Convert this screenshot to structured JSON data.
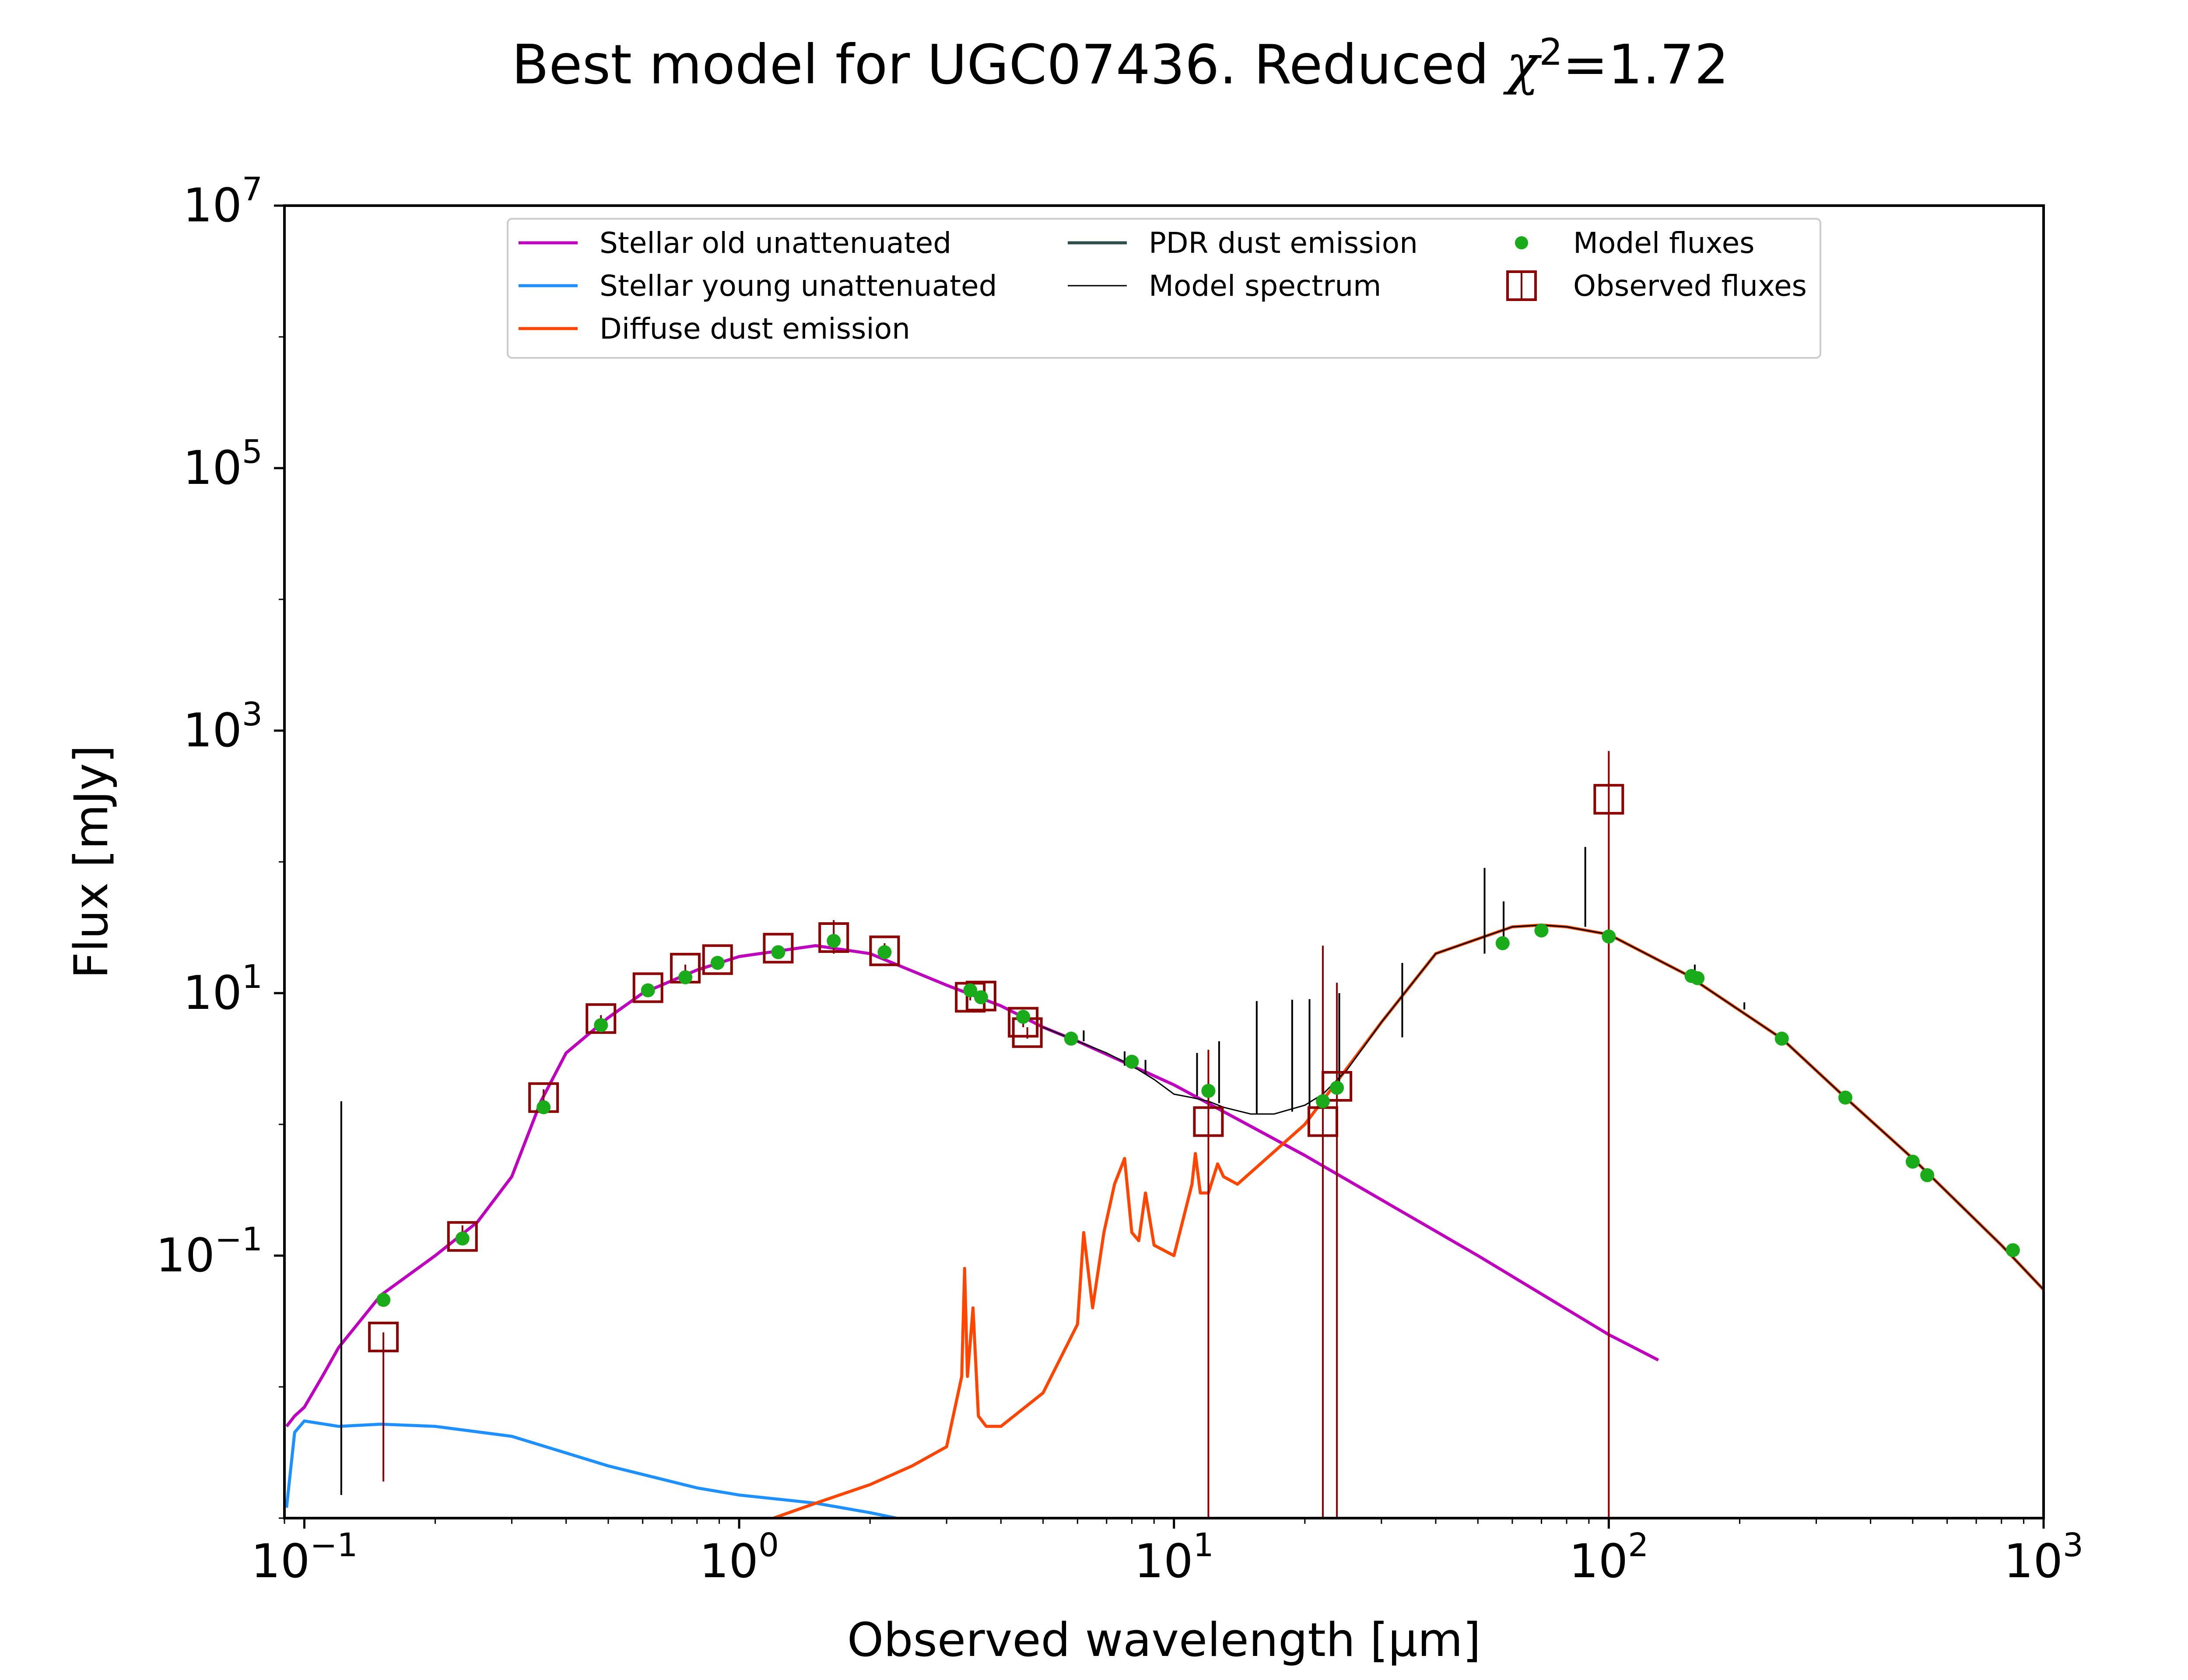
{
  "chart_data": {
    "type": "line",
    "title_prefix": "Best model for UGC07436. Reduced ",
    "title_symbol": "χ",
    "title_exponent": "2",
    "title_suffix": "=1.72",
    "xlabel": "Observed wavelength [μm]",
    "ylabel": "Flux [mJy]",
    "xscale": "log",
    "yscale": "log",
    "xlim": [
      0.09,
      1000
    ],
    "ylim": [
      0.001,
      10000000
    ],
    "x_ticks": [
      {
        "value": 0.1,
        "base": "10",
        "exp": "−1"
      },
      {
        "value": 1,
        "base": "10",
        "exp": "0"
      },
      {
        "value": 10,
        "base": "10",
        "exp": "1"
      },
      {
        "value": 100,
        "base": "10",
        "exp": "2"
      },
      {
        "value": 1000,
        "base": "10",
        "exp": "3"
      }
    ],
    "y_ticks": [
      {
        "value": 0.1,
        "base": "10",
        "exp": "−1"
      },
      {
        "value": 10,
        "base": "10",
        "exp": "1"
      },
      {
        "value": 1000,
        "base": "10",
        "exp": "3"
      },
      {
        "value": 100000,
        "base": "10",
        "exp": "5"
      },
      {
        "value": 10000000,
        "base": "10",
        "exp": "7"
      }
    ],
    "legend_position": "top-center",
    "legend": [
      {
        "label": "Stellar old unattenuated",
        "type": "line",
        "color": "#bf00bf"
      },
      {
        "label": "Stellar young unattenuated",
        "type": "line",
        "color": "#1e90ff"
      },
      {
        "label": "Diffuse dust emission",
        "type": "line",
        "color": "#ff4500"
      },
      {
        "label": "PDR dust emission",
        "type": "line",
        "color": "#2f4f4f"
      },
      {
        "label": "Model spectrum",
        "type": "thin-line",
        "color": "#000000"
      },
      {
        "label": "Model fluxes",
        "type": "dot",
        "color": "#1aab1a"
      },
      {
        "label": "Observed fluxes",
        "type": "square",
        "color": "#8b0000"
      }
    ],
    "series": [
      {
        "name": "Stellar old unattenuated",
        "color": "#bf00bf",
        "x": [
          0.091,
          0.095,
          0.1,
          0.11,
          0.12,
          0.15,
          0.2,
          0.25,
          0.3,
          0.35,
          0.4,
          0.5,
          0.6,
          0.8,
          1.0,
          1.5,
          2.0,
          3.0,
          4.0,
          5.0,
          6.0,
          8.0,
          10.0,
          20.0,
          50.0,
          100.0,
          130.0
        ],
        "y": [
          0.005,
          0.006,
          0.007,
          0.012,
          0.02,
          0.05,
          0.1,
          0.18,
          0.4,
          1.5,
          3.5,
          6.5,
          10,
          15,
          19,
          23,
          20,
          11.5,
          8,
          5.5,
          4.3,
          2.8,
          2.0,
          0.58,
          0.1,
          0.025,
          0.016
        ]
      },
      {
        "name": "Stellar young unattenuated",
        "color": "#1e90ff",
        "x": [
          0.091,
          0.095,
          0.1,
          0.12,
          0.15,
          0.2,
          0.3,
          0.5,
          0.8,
          1.0,
          1.5,
          2.0,
          2.3
        ],
        "y": [
          0.0012,
          0.0045,
          0.0055,
          0.005,
          0.0052,
          0.005,
          0.0042,
          0.0025,
          0.0017,
          0.0015,
          0.0013,
          0.0011,
          0.001
        ]
      },
      {
        "name": "Diffuse dust emission",
        "color": "#ff4500",
        "x": [
          1.2,
          1.5,
          2.0,
          2.5,
          3.0,
          3.25,
          3.3,
          3.35,
          3.45,
          3.55,
          3.7,
          4.0,
          5.0,
          6.0,
          6.2,
          6.5,
          6.9,
          7.3,
          7.7,
          8.0,
          8.3,
          8.6,
          9.0,
          10.0,
          11.0,
          11.2,
          11.5,
          12.0,
          12.6,
          13.0,
          14.0,
          20.0,
          30.0,
          40.0,
          60.0,
          70.0,
          80.0,
          100.0,
          150.0,
          250.0,
          350.0,
          500.0,
          800.0,
          1000.0
        ],
        "y": [
          0.001,
          0.0013,
          0.0018,
          0.0025,
          0.0035,
          0.012,
          0.08,
          0.012,
          0.04,
          0.006,
          0.005,
          0.005,
          0.009,
          0.03,
          0.15,
          0.04,
          0.15,
          0.35,
          0.55,
          0.15,
          0.13,
          0.3,
          0.12,
          0.1,
          0.35,
          0.6,
          0.3,
          0.3,
          0.5,
          0.4,
          0.35,
          1.0,
          6.0,
          20,
          32,
          33,
          32,
          28,
          14,
          4.5,
          1.6,
          0.55,
          0.12,
          0.055
        ]
      },
      {
        "name": "Model spectrum",
        "color": "#000000",
        "x": [
          5.0,
          6.0,
          7.0,
          8.0,
          9.0,
          10.0,
          11.0,
          12.0,
          13.0,
          15.0,
          17.0,
          20.0,
          22.0,
          25.0,
          30.0,
          40.0,
          60.0,
          70.0,
          80.0,
          100.0,
          150.0,
          250.0,
          350.0,
          500.0,
          800.0,
          1000.0
        ],
        "y": [
          5.5,
          4.3,
          3.5,
          2.8,
          2.2,
          1.7,
          1.6,
          1.5,
          1.35,
          1.2,
          1.2,
          1.4,
          1.7,
          2.6,
          6.0,
          20,
          32,
          33,
          32,
          28,
          14,
          4.5,
          1.6,
          0.55,
          0.12,
          0.055
        ]
      }
    ],
    "emission_lines": {
      "color": "#000000",
      "x": [
        0.1216,
        6.2,
        7.7,
        8.6,
        11.3,
        12.7,
        15.5,
        18.7,
        20.5,
        24.0,
        33.5,
        51.8,
        57.3,
        88.3,
        157.7,
        205.0
      ],
      "y_base": [
        0.0015,
        4.3,
        2.8,
        2.4,
        1.65,
        1.45,
        1.2,
        1.25,
        1.35,
        2.0,
        4.6,
        20,
        26,
        32,
        14,
        7.5
      ],
      "y_peak": [
        1.5,
        5.2,
        3.6,
        3.1,
        3.5,
        4.3,
        8.7,
        8.9,
        9.0,
        10.0,
        17.0,
        90.0,
        50.0,
        130.0,
        16.5,
        8.5
      ]
    },
    "model_fluxes": {
      "name": "Model fluxes",
      "color": "#1aab1a",
      "x": [
        0.152,
        0.231,
        0.355,
        0.481,
        0.617,
        0.752,
        0.892,
        1.23,
        1.65,
        2.16,
        3.4,
        3.6,
        4.5,
        5.8,
        8.0,
        12.0,
        22.0,
        23.7,
        57.0,
        70.0,
        100.0,
        155.0,
        160.0,
        250.0,
        350.0,
        500.0,
        540.0,
        850.0
      ],
      "y": [
        0.046,
        0.135,
        1.35,
        5.7,
        10.5,
        13.2,
        17.0,
        20.5,
        25.0,
        20.5,
        10.5,
        9.3,
        6.6,
        4.5,
        3.0,
        1.8,
        1.5,
        1.9,
        24.0,
        30.0,
        27.0,
        13.5,
        13.0,
        4.5,
        1.6,
        0.52,
        0.41,
        0.11
      ]
    },
    "observed_fluxes": {
      "name": "Observed fluxes",
      "color": "#8b0000",
      "x": [
        0.152,
        0.231,
        0.355,
        0.481,
        0.617,
        0.752,
        0.892,
        1.23,
        1.65,
        2.16,
        3.4,
        3.6,
        4.5,
        4.6,
        12.0,
        22.0,
        23.7,
        100.0
      ],
      "y": [
        0.024,
        0.14,
        1.6,
        6.4,
        11.0,
        15.5,
        18.0,
        22.0,
        26.5,
        21.0,
        9.3,
        9.5,
        6.0,
        5.0,
        1.05,
        1.05,
        1.95,
        300.0
      ],
      "err_low": [
        0.0019,
        0.12,
        1.4,
        6.0,
        10.5,
        14.5,
        17.0,
        21.0,
        20.0,
        18.0,
        8.8,
        9.0,
        5.5,
        4.5,
        0.001,
        0.001,
        0.001,
        0.001
      ],
      "err_high": [
        0.026,
        0.17,
        1.85,
        6.8,
        11.5,
        16.5,
        19.0,
        23.0,
        36.0,
        24.0,
        9.8,
        10.0,
        6.5,
        5.5,
        3.7,
        23.0,
        12.0,
        700.0
      ]
    }
  }
}
